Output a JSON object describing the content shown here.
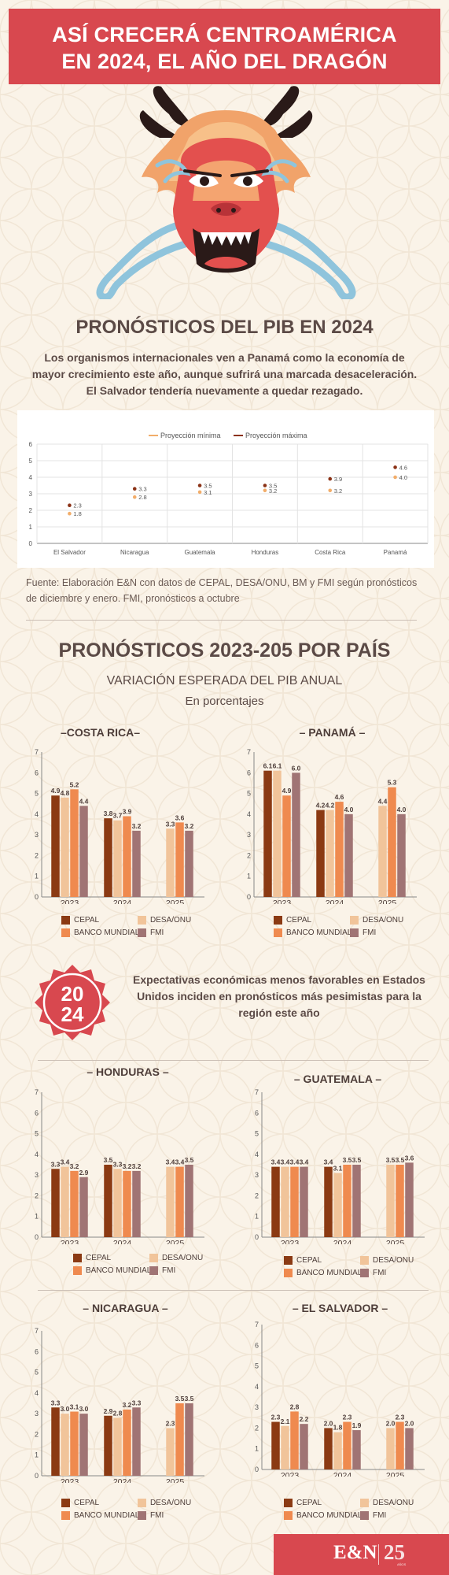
{
  "header": {
    "title_line1": "ASÍ CRECERÁ CENTROAMÉRICA",
    "title_line2": "EN 2024, EL AÑO DEL DRAGÓN"
  },
  "section1": {
    "title": "PRONÓSTICOS DEL PIB EN 2024",
    "intro": "Los organismos internacionales ven a Panamá como la economía de mayor crecimiento este año, aunque sufrirá una marcada desaceleración. El Salvador tendería nuevamente a quedar rezagado.",
    "source": "Fuente: Elaboración E&N con datos de CEPAL, DESA/ONU, BM y FMI según pronósticos de diciembre y enero. FMI, pronósticos a octubre"
  },
  "section2": {
    "title": "PRONÓSTICOS 2023-205 POR PAÍS",
    "subtitle": "VARIACIÓN ESPERADA DEL PIB ANUAL",
    "unit": "En porcentajes"
  },
  "callout": {
    "badge_top": "20",
    "badge_bottom": "24",
    "text": "Expectativas económicas menos favorables en Estados Unidos inciden en pronósticos más pesimistas para la región este año"
  },
  "footer": {
    "logo": "E&N",
    "anniversary": "25",
    "anniversary_small": "AÑOS"
  },
  "colors": {
    "banner": "#d8484f",
    "min": "#f2ad6a",
    "max": "#8b3216",
    "CEPAL": "#8b3a13",
    "DESA/ONU": "#f1c49a",
    "BANCO MUNDIAL": "#ef8a4f",
    "FMI": "#a07474"
  },
  "chart_data": [
    {
      "type": "scatter",
      "categories": [
        "El Salvador",
        "Nicaragua",
        "Guatemala",
        "Honduras",
        "Costa Rica",
        "Panamá"
      ],
      "series": [
        {
          "name": "Proyección mínima",
          "values": [
            1.8,
            2.8,
            3.1,
            3.2,
            3.2,
            4.0
          ]
        },
        {
          "name": "Proyección máxima",
          "values": [
            2.3,
            3.3,
            3.5,
            3.5,
            3.9,
            4.6
          ]
        }
      ],
      "ylim": [
        0,
        6
      ],
      "yticks": [
        0,
        1,
        2,
        3,
        4,
        5,
        6
      ],
      "legend": "top",
      "grid": true
    },
    {
      "type": "bar",
      "title": "–COSTA RICA–",
      "categories": [
        "2023",
        "2024",
        "2025"
      ],
      "series": [
        {
          "name": "CEPAL",
          "values": [
            4.9,
            3.8,
            null
          ]
        },
        {
          "name": "DESA/ONU",
          "values": [
            4.8,
            3.7,
            3.3
          ]
        },
        {
          "name": "BANCO MUNDIAL",
          "values": [
            5.2,
            3.9,
            3.6
          ]
        },
        {
          "name": "FMI",
          "values": [
            4.4,
            3.2,
            3.2
          ]
        }
      ],
      "ylim": [
        0,
        7
      ]
    },
    {
      "type": "bar",
      "title": "– PANAMÁ –",
      "categories": [
        "2023",
        "2024",
        "2025"
      ],
      "series": [
        {
          "name": "CEPAL",
          "values": [
            6.1,
            4.2,
            null
          ]
        },
        {
          "name": "DESA/ONU",
          "values": [
            6.1,
            4.2,
            4.4
          ]
        },
        {
          "name": "BANCO MUNDIAL",
          "values": [
            4.9,
            4.6,
            5.3
          ]
        },
        {
          "name": "FMI",
          "values": [
            6.0,
            4.0,
            4.0
          ]
        }
      ],
      "ylim": [
        0,
        7
      ]
    },
    {
      "type": "bar",
      "title": "– HONDURAS –",
      "categories": [
        "2023",
        "2024",
        "2025"
      ],
      "series": [
        {
          "name": "CEPAL",
          "values": [
            3.3,
            3.5,
            null
          ]
        },
        {
          "name": "DESA/ONU",
          "values": [
            3.4,
            3.3,
            3.4
          ]
        },
        {
          "name": "BANCO MUNDIAL",
          "values": [
            3.2,
            3.2,
            3.4
          ]
        },
        {
          "name": "FMI",
          "values": [
            2.9,
            3.2,
            3.5
          ]
        }
      ],
      "ylim": [
        0,
        7
      ]
    },
    {
      "type": "bar",
      "title": "– GUATEMALA –",
      "categories": [
        "2023",
        "2024",
        "2025"
      ],
      "series": [
        {
          "name": "CEPAL",
          "values": [
            3.4,
            3.4,
            null
          ]
        },
        {
          "name": "DESA/ONU",
          "values": [
            3.4,
            3.1,
            3.5
          ]
        },
        {
          "name": "BANCO MUNDIAL",
          "values": [
            3.4,
            3.5,
            3.5
          ]
        },
        {
          "name": "FMI",
          "values": [
            3.4,
            3.5,
            3.6
          ]
        }
      ],
      "ylim": [
        0,
        7
      ]
    },
    {
      "type": "bar",
      "title": "– NICARAGUA –",
      "categories": [
        "2023",
        "2024",
        "2025"
      ],
      "series": [
        {
          "name": "CEPAL",
          "values": [
            3.3,
            2.9,
            null
          ]
        },
        {
          "name": "DESA/ONU",
          "values": [
            3.0,
            2.8,
            2.3
          ]
        },
        {
          "name": "BANCO MUNDIAL",
          "values": [
            3.1,
            3.2,
            3.5
          ]
        },
        {
          "name": "FMI",
          "values": [
            3.0,
            3.3,
            3.5
          ]
        }
      ],
      "ylim": [
        0,
        7
      ]
    },
    {
      "type": "bar",
      "title": "– EL SALVADOR –",
      "categories": [
        "2023",
        "2024",
        "2025"
      ],
      "series": [
        {
          "name": "CEPAL",
          "values": [
            2.3,
            2.0,
            null
          ]
        },
        {
          "name": "DESA/ONU",
          "values": [
            2.1,
            1.8,
            2.0
          ]
        },
        {
          "name": "BANCO MUNDIAL",
          "values": [
            2.8,
            2.3,
            2.3
          ]
        },
        {
          "name": "FMI",
          "values": [
            2.2,
            1.9,
            2.0
          ]
        }
      ],
      "ylim": [
        0,
        7
      ]
    }
  ]
}
